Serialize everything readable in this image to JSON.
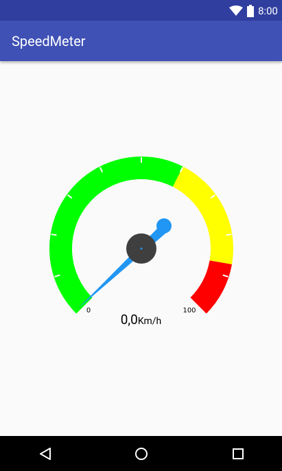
{
  "status_bar": {
    "time": "8:00",
    "icons": [
      "wifi-icon",
      "battery-icon"
    ]
  },
  "app_bar": {
    "title": "SpeedMeter"
  },
  "speedometer": {
    "min_label": "0",
    "max_label": "100",
    "min": 0,
    "max": 100,
    "speed_value": "0,0",
    "speed_unit": "Km/h",
    "zones": [
      {
        "name": "green",
        "color": "#00FF00",
        "from": 0,
        "to": 60
      },
      {
        "name": "yellow",
        "color": "#FFFF00",
        "from": 60,
        "to": 87
      },
      {
        "name": "red",
        "color": "#FF0000",
        "from": 87,
        "to": 100
      }
    ],
    "needle_color": "#2196F3",
    "hub_color": "#3F3F3F"
  },
  "nav_bar": {
    "buttons": [
      "back-icon",
      "home-icon",
      "recents-icon"
    ]
  }
}
